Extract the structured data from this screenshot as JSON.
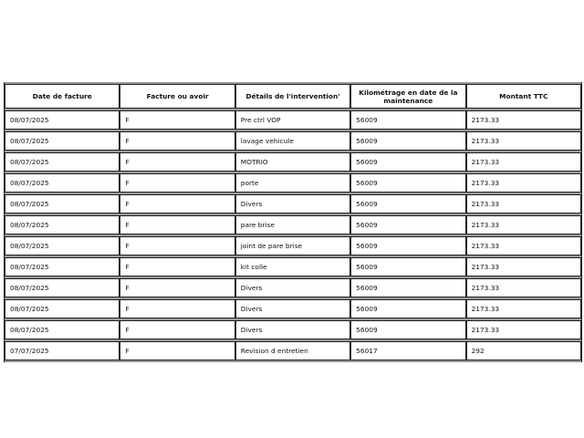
{
  "table": {
    "headers": [
      "Date de facture",
      "Facture ou avoir",
      "Détails de l'intervention'",
      "Kilométrage en date de la maintenance",
      "Montant TTC"
    ],
    "rows": [
      [
        "08/07/2025",
        "F",
        "Pre ctrl VOP",
        "56009",
        "2173.33"
      ],
      [
        "08/07/2025",
        "F",
        "lavage vehicule",
        "56009",
        "2173.33"
      ],
      [
        "08/07/2025",
        "F",
        "MOTRIO",
        "56009",
        "2173.33"
      ],
      [
        "08/07/2025",
        "F",
        "porte",
        "56009",
        "2173.33"
      ],
      [
        "08/07/2025",
        "F",
        "Divers",
        "56009",
        "2173.33"
      ],
      [
        "08/07/2025",
        "F",
        "pare brise",
        "56009",
        "2173.33"
      ],
      [
        "08/07/2025",
        "F",
        "joint de pare brise",
        "56009",
        "2173.33"
      ],
      [
        "08/07/2025",
        "F",
        "kit colle",
        "56009",
        "2173.33"
      ],
      [
        "08/07/2025",
        "F",
        "Divers",
        "56009",
        "2173.33"
      ],
      [
        "08/07/2025",
        "F",
        "Divers",
        "56009",
        "2173.33"
      ],
      [
        "08/07/2025",
        "F",
        "Divers",
        "56009",
        "2173.33"
      ],
      [
        "07/07/2025",
        "F",
        "Revision d entretien",
        "56017",
        "292"
      ]
    ]
  }
}
